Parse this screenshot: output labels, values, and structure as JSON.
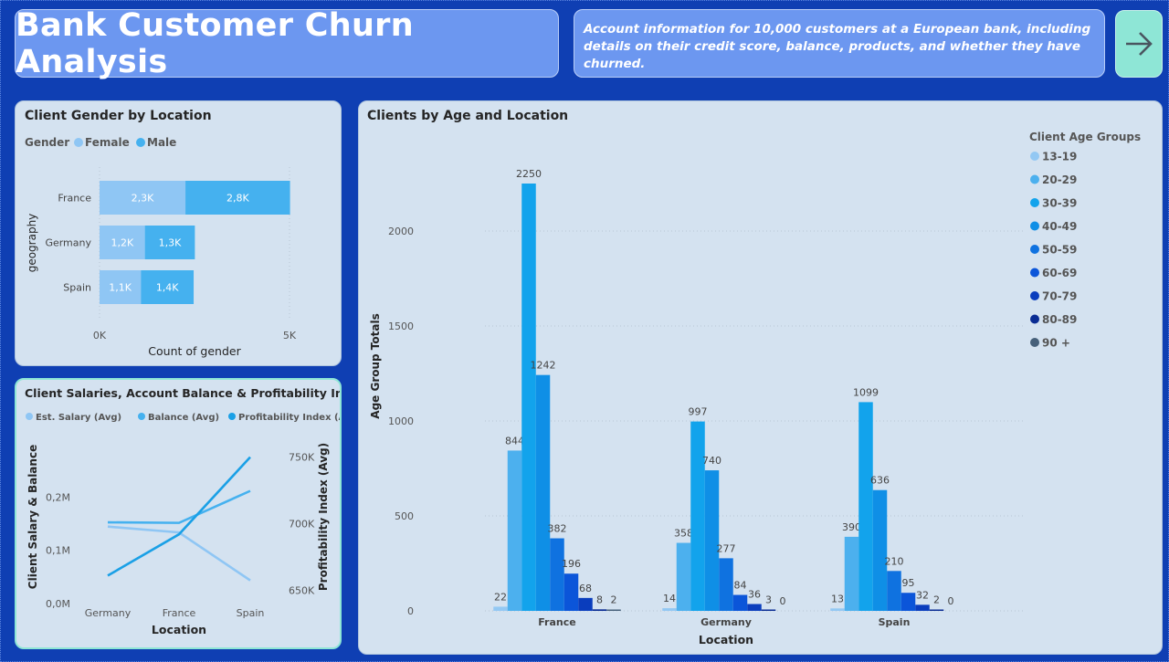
{
  "header": {
    "title": "Bank Customer Churn Analysis",
    "description": "Account information for 10,000 customers at a European bank, including details on their credit score, balance, products, and whether they have churned.",
    "nav_icon": "arrow-right-icon"
  },
  "colors": {
    "female": "#8fc6f4",
    "male": "#45b1ef",
    "salary": "#8fc6f4",
    "balance": "#45b1ef",
    "profitability": "#1aa0e6",
    "age_groups": [
      "#93c8f3",
      "#4cb0ee",
      "#12a3ec",
      "#0f8fe6",
      "#0f72e0",
      "#0b55d9",
      "#0a3dbd",
      "#0a2c93",
      "#46607a"
    ]
  },
  "chart_data": [
    {
      "type": "bar",
      "orientation": "horizontal",
      "stacked": true,
      "title": "Client Gender by Location",
      "legend_title": "Gender",
      "legend_position": "top-left",
      "ylabel": "geography",
      "xlabel": "Count of gender",
      "categories": [
        "France",
        "Germany",
        "Spain"
      ],
      "series": [
        {
          "name": "Female",
          "values": [
            2261,
            1193,
            1089
          ],
          "labels": [
            "2,3K",
            "1,2K",
            "1,1K"
          ]
        },
        {
          "name": "Male",
          "values": [
            2753,
            1316,
            1388
          ],
          "labels": [
            "2,8K",
            "1,3K",
            "1,4K"
          ]
        }
      ],
      "xlim": [
        0,
        5000
      ],
      "xticks": [
        "0K",
        "5K"
      ],
      "grid": true
    },
    {
      "type": "line",
      "title": "Client Salaries, Account Balance & Profitability Index",
      "legend_position": "top-left",
      "xlabel": "Location",
      "ylabel": "Client Salary & Balance",
      "y2label": "Profitability Index (Avg)",
      "categories": [
        "Germany",
        "France",
        "Spain"
      ],
      "ylim": [
        0,
        0.3
      ],
      "yticks": [
        "0,0M",
        "0,1M",
        "0,2M"
      ],
      "y2lim": [
        640,
        760
      ],
      "y2ticks": [
        "650K",
        "700K",
        "750K"
      ],
      "series": [
        {
          "name": "Est. Salary (Avg)",
          "axis": "left",
          "values": [
            0.1445,
            0.1335,
            0.0435
          ]
        },
        {
          "name": "Balance (Avg)",
          "axis": "left",
          "values": [
            0.1525,
            0.1515,
            0.2115
          ]
        },
        {
          "name": "Profitability Index (Avg)",
          "axis": "right",
          "values": [
            661,
            692,
            750
          ]
        }
      ]
    },
    {
      "type": "bar",
      "title": "Clients by Age and Location",
      "legend_title": "Client Age Groups",
      "legend_position": "right",
      "xlabel": "Location",
      "ylabel": "Age Group Totals",
      "categories": [
        "France",
        "Germany",
        "Spain"
      ],
      "ylim": [
        0,
        2500
      ],
      "yticks": [
        0,
        500,
        1000,
        1500,
        2000
      ],
      "grid": true,
      "series": [
        {
          "name": "13-19",
          "values": [
            22,
            14,
            13
          ]
        },
        {
          "name": "20-29",
          "values": [
            844,
            358,
            390
          ]
        },
        {
          "name": "30-39",
          "values": [
            2250,
            997,
            1099
          ]
        },
        {
          "name": "40-49",
          "values": [
            1242,
            740,
            636
          ]
        },
        {
          "name": "50-59",
          "values": [
            382,
            277,
            210
          ]
        },
        {
          "name": "60-69",
          "values": [
            196,
            84,
            95
          ]
        },
        {
          "name": "70-79",
          "values": [
            68,
            36,
            32
          ]
        },
        {
          "name": "80-89",
          "values": [
            8,
            3,
            2
          ]
        },
        {
          "name": "90 +",
          "values": [
            2,
            0,
            0
          ]
        }
      ]
    }
  ]
}
